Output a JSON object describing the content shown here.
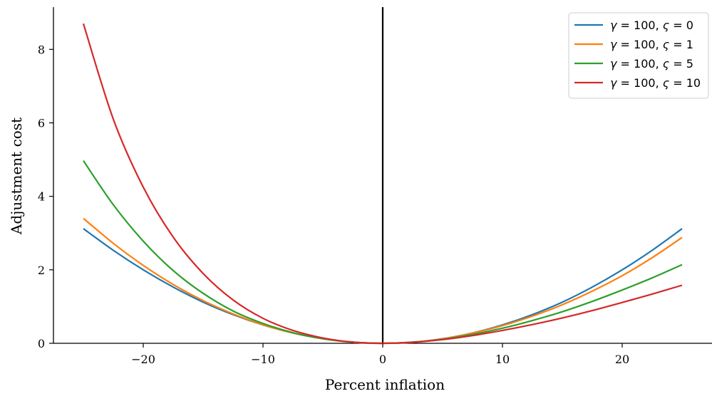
{
  "chart_data": {
    "type": "line",
    "title": "",
    "xlabel": "Percent inflation",
    "ylabel": "Adjustment cost",
    "xlim": [
      -27.5,
      27.5
    ],
    "ylim": [
      0,
      9.15
    ],
    "xticks": [
      -20,
      -10,
      0,
      10,
      20
    ],
    "xtick_labels": [
      "−20",
      "−10",
      "0",
      "10",
      "20"
    ],
    "yticks": [
      0,
      2,
      4,
      6,
      8
    ],
    "ytick_labels": [
      "0",
      "2",
      "4",
      "6",
      "8"
    ],
    "grid": false,
    "vline_at_x": 0,
    "legend_position": "top-right",
    "x": [
      -25,
      -22.5,
      -20,
      -17.5,
      -15,
      -12.5,
      -10,
      -7.5,
      -5,
      -2.5,
      0,
      2.5,
      5,
      7.5,
      10,
      12.5,
      15,
      17.5,
      20,
      22.5,
      25
    ],
    "series": [
      {
        "name": "γ = 100, ς = 0",
        "gamma": "100",
        "sigma": "0",
        "color": "#1f77b4",
        "values": [
          3.12,
          2.53,
          2.0,
          1.53,
          1.12,
          0.78,
          0.5,
          0.28,
          0.125,
          0.031,
          0,
          0.031,
          0.125,
          0.28,
          0.5,
          0.78,
          1.12,
          1.53,
          2.0,
          2.53,
          3.12
        ]
      },
      {
        "name": "γ = 100, ς = 1",
        "gamma": "100",
        "sigma": "1",
        "color": "#ff7f0e",
        "values": [
          3.4,
          2.72,
          2.12,
          1.6,
          1.16,
          0.8,
          0.505,
          0.28,
          0.125,
          0.031,
          0,
          0.031,
          0.12,
          0.275,
          0.48,
          0.74,
          1.05,
          1.42,
          1.84,
          2.33,
          2.88
        ]
      },
      {
        "name": "γ = 100, ς = 5",
        "gamma": "100",
        "sigma": "5",
        "color": "#2ca02c",
        "values": [
          4.97,
          3.77,
          2.78,
          1.98,
          1.36,
          0.88,
          0.54,
          0.29,
          0.125,
          0.03,
          0,
          0.028,
          0.11,
          0.24,
          0.41,
          0.62,
          0.86,
          1.14,
          1.45,
          1.78,
          2.14
        ]
      },
      {
        "name": "γ = 100, ς = 10",
        "gamma": "100",
        "sigma": "10",
        "color": "#d62728",
        "values": [
          8.7,
          6.1,
          4.25,
          2.89,
          1.9,
          1.18,
          0.68,
          0.35,
          0.145,
          0.033,
          0,
          0.027,
          0.1,
          0.21,
          0.35,
          0.51,
          0.69,
          0.89,
          1.11,
          1.34,
          1.58
        ]
      }
    ]
  }
}
